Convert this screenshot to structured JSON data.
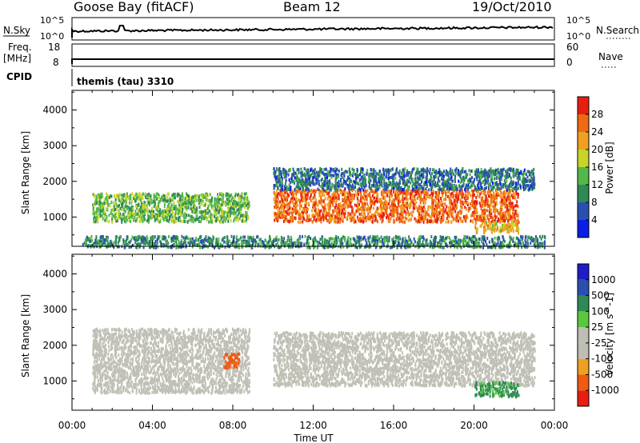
{
  "header": {
    "station": "Goose Bay (fitACF)",
    "beam": "Beam 12",
    "date": "19/Oct/2010"
  },
  "top_panels": {
    "nsky_label": "N.Sky",
    "nsky_ticks": [
      "10^5",
      "10^0"
    ],
    "nsearch_label": "N.Search",
    "nsearch_ticks": [
      "10^5",
      "10^0"
    ],
    "freq_label": "Freq.",
    "freq_unit": "[MHz]",
    "freq_ticks": [
      "18",
      "8"
    ],
    "nave_label": "Nave",
    "nave_ticks": [
      "60",
      "0"
    ],
    "cpid_label": "CPID",
    "cpid_value": "themis (tau) 3310"
  },
  "colors": {
    "power_scale": [
      "#0a1ee6",
      "#2a4fb0",
      "#2e8a55",
      "#55b84a",
      "#c8d42a",
      "#f0a020",
      "#f06a14",
      "#e81e10"
    ],
    "velocity_scale": [
      "#e81e10",
      "#f05a14",
      "#f0a020",
      "#bebeb4",
      "#bebeb4",
      "#5ac83c",
      "#2e8a55",
      "#2a4fb0",
      "#1e1ec8"
    ],
    "scatter_gray": "#c0c0b6"
  },
  "chart_data": [
    {
      "type": "heatmap",
      "title": "Power",
      "ylabel": "Slant Range [km]",
      "xlabel": "Time UT",
      "x_ticks": [
        "00:00",
        "04:00",
        "08:00",
        "12:00",
        "16:00",
        "20:00",
        "00:00"
      ],
      "xlim": [
        0,
        24
      ],
      "y_ticks": [
        "1000",
        "2000",
        "3000",
        "4000"
      ],
      "ylim": [
        180,
        4550
      ],
      "colorbar": {
        "label": "Power [dB]",
        "ticks": [
          "4",
          "8",
          "12",
          "16",
          "20",
          "24",
          "28"
        ],
        "range": [
          0,
          32
        ]
      },
      "regions": [
        {
          "name": "F-region echo 12-22 UT",
          "t": [
            10.0,
            22.2
          ],
          "r": [
            900,
            1800
          ],
          "power_db": 26
        },
        {
          "name": "E/F echo 01-09 UT",
          "t": [
            1.0,
            8.8
          ],
          "r": [
            900,
            1700
          ],
          "power_db": 14
        },
        {
          "name": "Upper band 10-23 UT",
          "t": [
            10.0,
            23.0
          ],
          "r": [
            1800,
            2400
          ],
          "power_db": 8
        },
        {
          "name": "Near-range ground band",
          "t": [
            0.5,
            23.5
          ],
          "r": [
            180,
            500
          ],
          "power_db": 10
        },
        {
          "name": "Late echo 20-22 UT",
          "t": [
            20.0,
            22.2
          ],
          "r": [
            600,
            900
          ],
          "power_db": 20
        }
      ]
    },
    {
      "type": "heatmap",
      "title": "Velocity",
      "ylabel": "Slant Range [km]",
      "xlabel": "Time UT",
      "x_ticks": [
        "00:00",
        "04:00",
        "08:00",
        "12:00",
        "16:00",
        "20:00",
        "00:00"
      ],
      "xlim": [
        0,
        24
      ],
      "y_ticks": [
        "1000",
        "2000",
        "3000",
        "4000"
      ],
      "ylim": [
        180,
        4550
      ],
      "colorbar": {
        "label": "Velocity [m s^-1]",
        "ticks": [
          "1000",
          "500",
          "100",
          "25",
          "-25",
          "-100",
          "-500",
          "-1000"
        ],
        "range": [
          -1000,
          1000
        ]
      },
      "regions": [
        {
          "name": "Ground scatter 10-22 UT",
          "t": [
            10.0,
            23.0
          ],
          "r": [
            900,
            2400
          ],
          "velocity": 0
        },
        {
          "name": "Ground scatter 01-09 UT",
          "t": [
            1.0,
            8.8
          ],
          "r": [
            700,
            2500
          ],
          "velocity": 0
        },
        {
          "name": "Flow feature near 08 UT",
          "t": [
            7.5,
            8.3
          ],
          "r": [
            1400,
            1800
          ],
          "velocity": -300
        },
        {
          "name": "Flow feature near 21 UT",
          "t": [
            20.0,
            22.2
          ],
          "r": [
            600,
            1000
          ],
          "velocity": 150
        }
      ]
    }
  ]
}
